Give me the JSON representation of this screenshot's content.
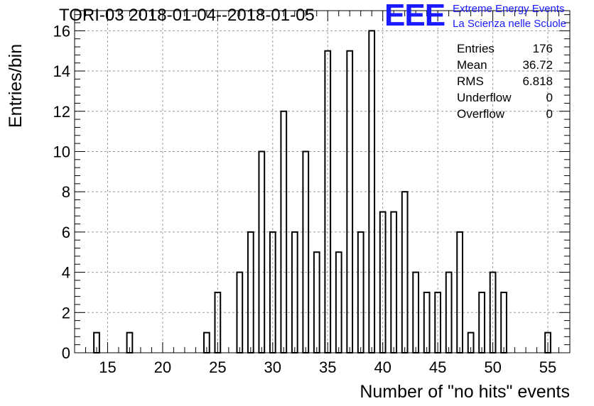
{
  "header": {
    "title": "TORI-03 2018-01-04--2018-01-05"
  },
  "logo": {
    "letters": "EEE",
    "line1": "Extreme Energy Events",
    "line2": "La Scienza nelle Scuole",
    "color": "#1a1aff"
  },
  "stats_box": {
    "rows": [
      {
        "label": "Entries",
        "value": "176"
      },
      {
        "label": "Mean",
        "value": "36.72"
      },
      {
        "label": "RMS",
        "value": "6.818"
      },
      {
        "label": "Underflow",
        "value": "0"
      },
      {
        "label": "Overflow",
        "value": "0"
      }
    ]
  },
  "chart_data": {
    "type": "bar",
    "title": "TORI-03 2018-01-04--2018-01-05",
    "xlabel": "Number of \"no hits\" events",
    "ylabel": "Entries/bin",
    "xlim": [
      12,
      57
    ],
    "ylim": [
      0,
      17
    ],
    "xticks": [
      15,
      20,
      25,
      30,
      35,
      40,
      45,
      50,
      55
    ],
    "yticks": [
      0,
      2,
      4,
      6,
      8,
      10,
      12,
      14,
      16
    ],
    "grid": true,
    "bin_width": 0.5,
    "bins": [
      {
        "x": 14,
        "count": 1
      },
      {
        "x": 17,
        "count": 1
      },
      {
        "x": 24,
        "count": 1
      },
      {
        "x": 25,
        "count": 3
      },
      {
        "x": 27,
        "count": 4
      },
      {
        "x": 28,
        "count": 6
      },
      {
        "x": 29,
        "count": 10
      },
      {
        "x": 30,
        "count": 6
      },
      {
        "x": 31,
        "count": 12
      },
      {
        "x": 32,
        "count": 6
      },
      {
        "x": 33,
        "count": 10
      },
      {
        "x": 34,
        "count": 5
      },
      {
        "x": 35,
        "count": 15
      },
      {
        "x": 36,
        "count": 5
      },
      {
        "x": 37,
        "count": 15
      },
      {
        "x": 38,
        "count": 6
      },
      {
        "x": 39,
        "count": 16
      },
      {
        "x": 40,
        "count": 7
      },
      {
        "x": 41,
        "count": 7
      },
      {
        "x": 42,
        "count": 8
      },
      {
        "x": 43,
        "count": 4
      },
      {
        "x": 44,
        "count": 3
      },
      {
        "x": 45,
        "count": 3
      },
      {
        "x": 46,
        "count": 4
      },
      {
        "x": 47,
        "count": 6
      },
      {
        "x": 48,
        "count": 1
      },
      {
        "x": 49,
        "count": 3
      },
      {
        "x": 50,
        "count": 4
      },
      {
        "x": 51,
        "count": 3
      },
      {
        "x": 55,
        "count": 1
      }
    ]
  }
}
